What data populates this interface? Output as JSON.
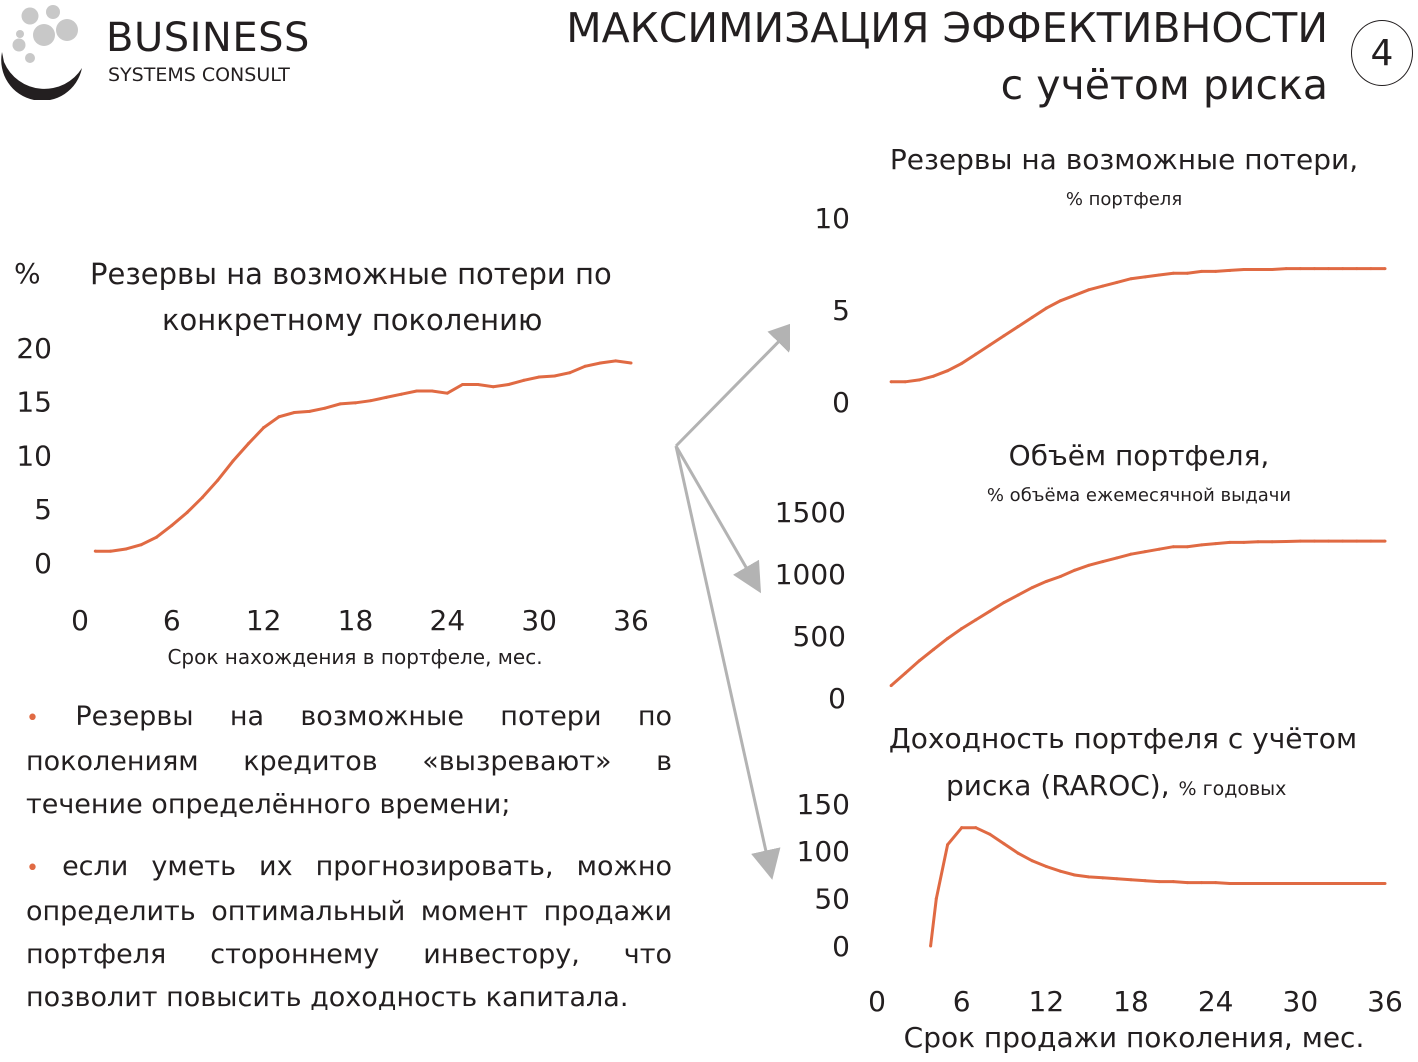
{
  "header": {
    "logo_name": "BUSINESS",
    "logo_subtitle": "SYSTEMS CONSULT",
    "title_line1": "МАКСИМИЗАЦИЯ ЭФФЕКТИВНОСТИ",
    "title_line2": "с учётом риска",
    "page_number": "4"
  },
  "bullets": [
    "Резервы на возможные потери по поколениям кредитов «вызревают» в течение определённого времени;",
    "если уметь их прогнозировать, можно определить оптимальный момент продажи портфеля стороннему инвестору, что позволит повысить доходность капитала."
  ],
  "colors": {
    "series": "#e06a43",
    "arrow": "#b3b3b3",
    "text": "#231f20"
  },
  "chart_data": [
    {
      "type": "line",
      "title": "Резервы на возможные потери по конкретному поколению",
      "title_line1": "Резервы на возможные потери по",
      "title_line2": "конкретному поколению",
      "ylabel": "%",
      "xlabel": "Срок нахождения в портфеле, мес.",
      "xlim": [
        0,
        36
      ],
      "ylim": [
        0,
        20
      ],
      "xticks": [
        "0",
        "6",
        "12",
        "18",
        "24",
        "30",
        "36"
      ],
      "yticks": [
        "0",
        "5",
        "10",
        "15",
        "20"
      ],
      "x": [
        1,
        2,
        3,
        4,
        5,
        6,
        7,
        8,
        9,
        10,
        11,
        12,
        13,
        14,
        15,
        16,
        17,
        18,
        19,
        20,
        21,
        22,
        23,
        24,
        25,
        26,
        27,
        28,
        29,
        30,
        31,
        32,
        33,
        34,
        35,
        36
      ],
      "values": [
        1.1,
        1.1,
        1.3,
        1.7,
        2.4,
        3.5,
        4.7,
        6.1,
        7.7,
        9.5,
        11.1,
        12.6,
        13.6,
        14.0,
        14.1,
        14.4,
        14.8,
        14.9,
        15.1,
        15.4,
        15.7,
        16.0,
        16.0,
        15.8,
        16.6,
        16.6,
        16.4,
        16.6,
        17.0,
        17.3,
        17.4,
        17.7,
        18.3,
        18.6,
        18.8,
        18.6
      ]
    },
    {
      "type": "line",
      "title": "Резервы на возможные потери,",
      "subtitle": "% портфеля",
      "xlim": [
        0,
        36
      ],
      "ylim": [
        0,
        10
      ],
      "yticks": [
        "0",
        "5",
        "10"
      ],
      "x": [
        1,
        2,
        3,
        4,
        5,
        6,
        7,
        8,
        9,
        10,
        11,
        12,
        13,
        14,
        15,
        16,
        17,
        18,
        19,
        20,
        21,
        22,
        23,
        24,
        25,
        26,
        27,
        28,
        29,
        30,
        31,
        32,
        33,
        34,
        35,
        36
      ],
      "values": [
        1.1,
        1.1,
        1.2,
        1.4,
        1.7,
        2.1,
        2.6,
        3.1,
        3.6,
        4.1,
        4.6,
        5.1,
        5.5,
        5.8,
        6.1,
        6.3,
        6.5,
        6.7,
        6.8,
        6.9,
        7.0,
        7.0,
        7.1,
        7.1,
        7.15,
        7.2,
        7.2,
        7.2,
        7.25,
        7.25,
        7.25,
        7.25,
        7.25,
        7.25,
        7.25,
        7.25
      ]
    },
    {
      "type": "line",
      "title": "Объём портфеля,",
      "subtitle": "% объёма ежемесячной выдачи",
      "xlim": [
        0,
        36
      ],
      "ylim": [
        0,
        1500
      ],
      "yticks": [
        "0",
        "500",
        "1000",
        "1500"
      ],
      "x": [
        1,
        2,
        3,
        4,
        5,
        6,
        7,
        8,
        9,
        10,
        11,
        12,
        13,
        14,
        15,
        16,
        17,
        18,
        19,
        20,
        21,
        22,
        23,
        24,
        25,
        26,
        27,
        28,
        29,
        30,
        31,
        32,
        33,
        34,
        35,
        36
      ],
      "values": [
        100,
        200,
        300,
        390,
        480,
        560,
        630,
        700,
        770,
        830,
        890,
        940,
        980,
        1030,
        1070,
        1100,
        1130,
        1160,
        1180,
        1200,
        1220,
        1220,
        1235,
        1245,
        1255,
        1255,
        1260,
        1260,
        1262,
        1265,
        1265,
        1265,
        1265,
        1265,
        1265,
        1265
      ]
    },
    {
      "type": "line",
      "title": "Доходность портфеля с учётом риска (RAROC), % годовых",
      "title_line1": "Доходность портфеля с учётом",
      "title_line2": "риска (RAROC),",
      "title_suffix": "% годовых",
      "xlabel": "Срок продажи поколения, мес.",
      "xlim": [
        0,
        36
      ],
      "ylim": [
        0,
        150
      ],
      "xticks": [
        "0",
        "6",
        "12",
        "18",
        "24",
        "30",
        "36"
      ],
      "yticks": [
        "0",
        "50",
        "100",
        "150"
      ],
      "x": [
        3.8,
        4.2,
        5,
        6,
        7,
        8,
        9,
        10,
        11,
        12,
        13,
        14,
        15,
        16,
        17,
        18,
        19,
        20,
        21,
        22,
        23,
        24,
        25,
        26,
        27,
        28,
        29,
        30,
        31,
        32,
        33,
        34,
        35,
        36
      ],
      "values": [
        0,
        50,
        107,
        125,
        125,
        118,
        108,
        98,
        90,
        84,
        79,
        75,
        73,
        72,
        71,
        70,
        69,
        68,
        68,
        67,
        67,
        67,
        66,
        66,
        66,
        66,
        66,
        66,
        66,
        66,
        66,
        66,
        66,
        66
      ]
    }
  ]
}
